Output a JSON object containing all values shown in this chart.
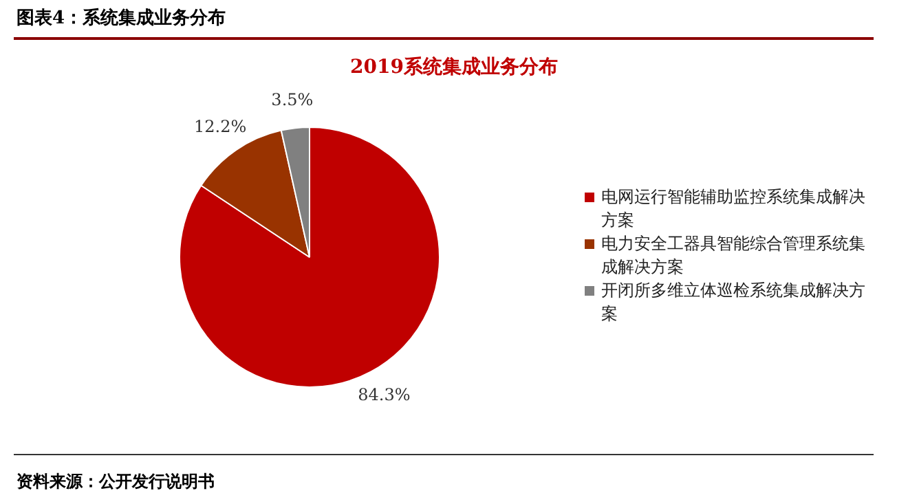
{
  "chart_data": {
    "type": "pie",
    "title": "2019系统集成业务分布",
    "subtitle": "图表4：系统集成业务分布",
    "categories": [
      "电网运行智能辅助监控系统集成解决方案",
      "电力安全工器具智能综合管理系统集成解决方案",
      "开闭所多维立体巡检系统集成解决方案"
    ],
    "values": [
      84.3,
      12.2,
      3.5
    ],
    "colors": [
      "#c00000",
      "#993300",
      "#808080"
    ],
    "value_labels": [
      "84.3%",
      "12.2%",
      "3.5%"
    ],
    "legend": "right",
    "annotations": [
      "资料来源：公开发行说明书"
    ]
  }
}
